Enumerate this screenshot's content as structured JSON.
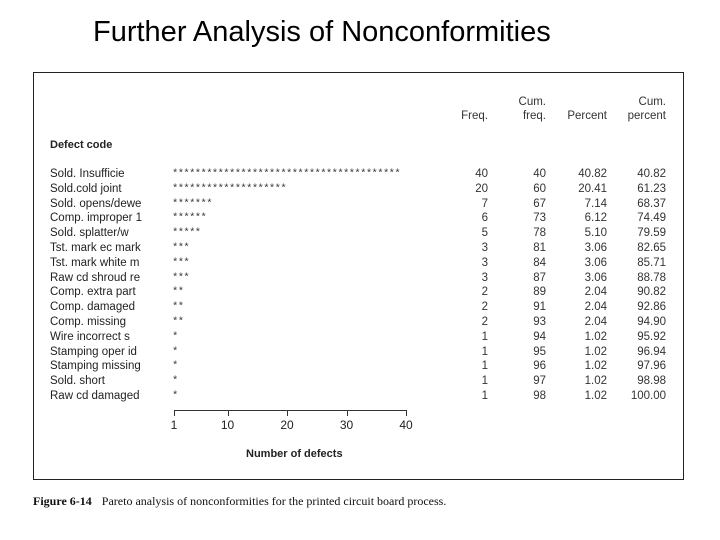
{
  "slide_title": "Further Analysis of Nonconformities",
  "headers": {
    "freq": "Freq.",
    "cum_freq": [
      "Cum.",
      "freq."
    ],
    "percent": "Percent",
    "cum_percent": [
      "Cum.",
      "percent"
    ]
  },
  "defect_code_label": "Defect code",
  "rows": [
    {
      "defect": "Sold. Insufficie",
      "stars": "****************************************",
      "freq": "40",
      "cum_freq": "40",
      "percent": "40.82",
      "cum_percent": "40.82"
    },
    {
      "defect": "Sold.cold joint",
      "stars": "********************",
      "freq": "20",
      "cum_freq": "60",
      "percent": "20.41",
      "cum_percent": "61.23"
    },
    {
      "defect": "Sold. opens/dewe",
      "stars": "*******",
      "freq": "7",
      "cum_freq": "67",
      "percent": "7.14",
      "cum_percent": "68.37"
    },
    {
      "defect": "Comp. improper 1",
      "stars": "******",
      "freq": "6",
      "cum_freq": "73",
      "percent": "6.12",
      "cum_percent": "74.49"
    },
    {
      "defect": "Sold. splatter/w",
      "stars": "*****",
      "freq": "5",
      "cum_freq": "78",
      "percent": "5.10",
      "cum_percent": "79.59"
    },
    {
      "defect": "Tst. mark ec mark",
      "stars": "***",
      "freq": "3",
      "cum_freq": "81",
      "percent": "3.06",
      "cum_percent": "82.65"
    },
    {
      "defect": "Tst. mark white m",
      "stars": "***",
      "freq": "3",
      "cum_freq": "84",
      "percent": "3.06",
      "cum_percent": "85.71"
    },
    {
      "defect": "Raw cd shroud re",
      "stars": "***",
      "freq": "3",
      "cum_freq": "87",
      "percent": "3.06",
      "cum_percent": "88.78"
    },
    {
      "defect": "Comp. extra part",
      "stars": "**",
      "freq": "2",
      "cum_freq": "89",
      "percent": "2.04",
      "cum_percent": "90.82"
    },
    {
      "defect": "Comp. damaged",
      "stars": "**",
      "freq": "2",
      "cum_freq": "91",
      "percent": "2.04",
      "cum_percent": "92.86"
    },
    {
      "defect": "Comp. missing",
      "stars": "**",
      "freq": "2",
      "cum_freq": "93",
      "percent": "2.04",
      "cum_percent": "94.90"
    },
    {
      "defect": "Wire incorrect s",
      "stars": "*",
      "freq": "1",
      "cum_freq": "94",
      "percent": "1.02",
      "cum_percent": "95.92"
    },
    {
      "defect": "Stamping oper id",
      "stars": "*",
      "freq": "1",
      "cum_freq": "95",
      "percent": "1.02",
      "cum_percent": "96.94"
    },
    {
      "defect": "Stamping missing",
      "stars": "*",
      "freq": "1",
      "cum_freq": "96",
      "percent": "1.02",
      "cum_percent": "97.96"
    },
    {
      "defect": "Sold. short",
      "stars": "*",
      "freq": "1",
      "cum_freq": "97",
      "percent": "1.02",
      "cum_percent": "98.98"
    },
    {
      "defect": "Raw cd damaged",
      "stars": "*",
      "freq": "1",
      "cum_freq": "98",
      "percent": "1.02",
      "cum_percent": "100.00"
    }
  ],
  "axis": {
    "ticks": [
      "1",
      "10",
      "20",
      "30",
      "40"
    ],
    "label": "Number of defects"
  },
  "caption": {
    "label": "Figure 6-14",
    "text": "Pareto analysis of nonconformities for the printed circuit board process."
  }
}
